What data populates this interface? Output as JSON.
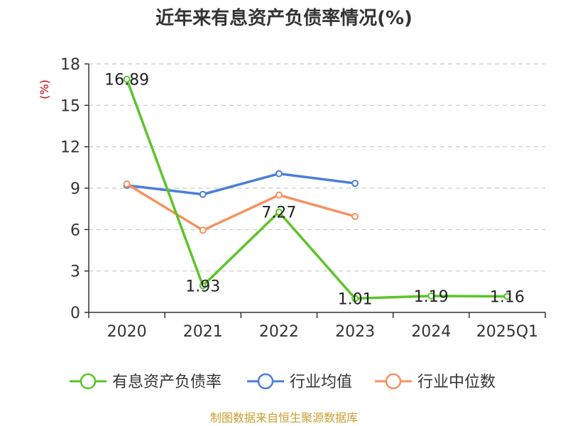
{
  "chart_data": {
    "type": "line",
    "title": "近年来有息资产负债率情况(%)",
    "ylabel": "(%)",
    "xlabel": "",
    "categories": [
      "2020",
      "2021",
      "2022",
      "2023",
      "2024",
      "2025Q1"
    ],
    "ylim": [
      0,
      18
    ],
    "yticks": [
      0,
      3,
      6,
      9,
      12,
      15,
      18
    ],
    "grid": "horizontal-dashed",
    "legend_position": "bottom",
    "series": [
      {
        "name": "有息资产负债率",
        "color": "#5cc42a",
        "values": [
          16.89,
          1.93,
          7.27,
          1.01,
          1.19,
          1.16
        ],
        "labels": [
          "16.89",
          "1.93",
          "7.27",
          "1.01",
          "1.19",
          "1.16"
        ]
      },
      {
        "name": "行业均值",
        "color": "#4a7fd6",
        "values": [
          9.2,
          8.55,
          10.05,
          9.35,
          null,
          null
        ]
      },
      {
        "name": "行业中位数",
        "color": "#f59160",
        "values": [
          9.3,
          5.95,
          8.5,
          6.95,
          null,
          null
        ]
      }
    ]
  },
  "source": "制图数据来自恒生聚源数据库"
}
